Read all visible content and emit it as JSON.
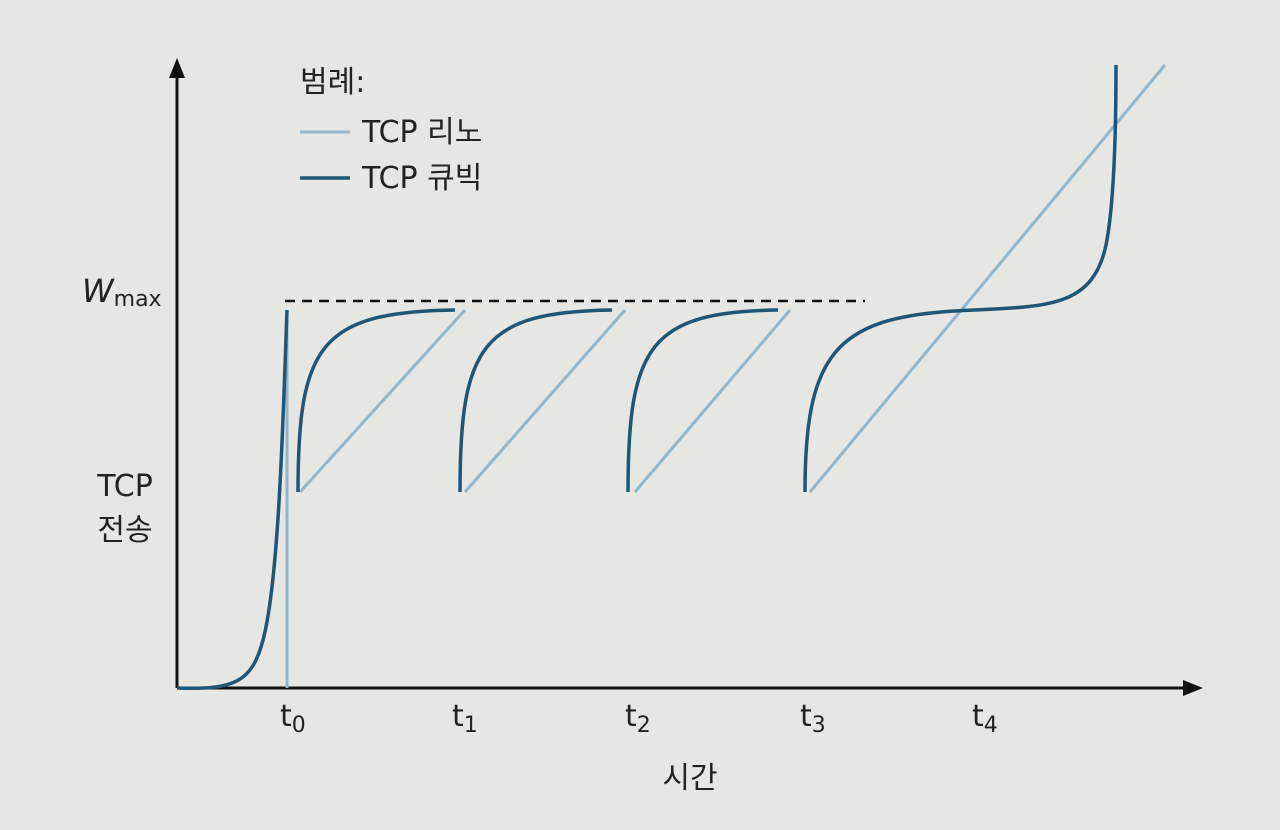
{
  "legend": {
    "title": "범례:",
    "items": [
      "TCP 리노",
      "TCP 큐빅"
    ]
  },
  "y_axis": {
    "wmax": {
      "main": "W",
      "sub": "max"
    },
    "label_lines": [
      "TCP",
      "전송"
    ]
  },
  "x_axis": {
    "ticks": [
      {
        "main": "t",
        "sub": "0"
      },
      {
        "main": "t",
        "sub": "1"
      },
      {
        "main": "t",
        "sub": "2"
      },
      {
        "main": "t",
        "sub": "3"
      },
      {
        "main": "t",
        "sub": "4"
      }
    ],
    "label": "시간"
  }
}
